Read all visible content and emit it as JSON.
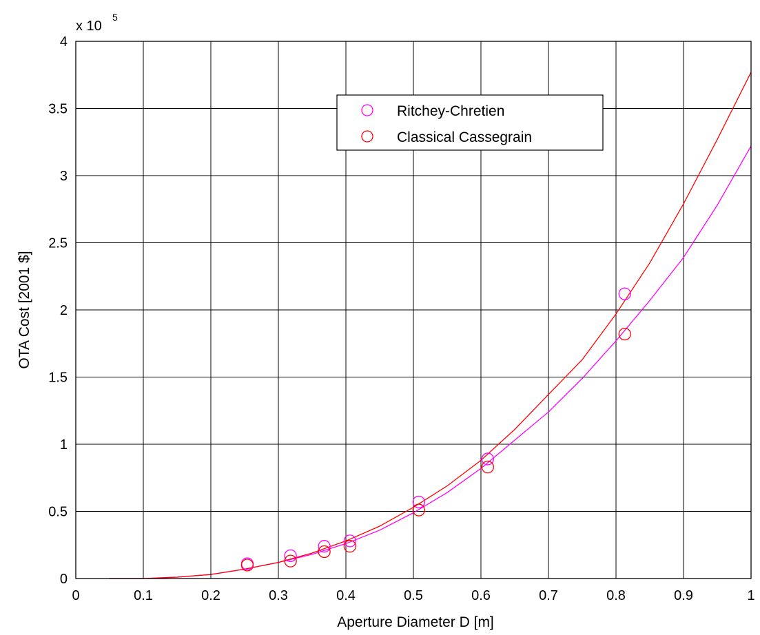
{
  "chart_data": {
    "type": "scatter",
    "title": "",
    "xlabel": "Aperture Diameter D [m]",
    "ylabel": "OTA Cost [2001 $]",
    "y_multiplier_text": "x 10",
    "y_multiplier_exponent": "5",
    "xlim": [
      0,
      1
    ],
    "ylim": [
      0,
      4
    ],
    "x_ticks": [
      0,
      0.1,
      0.2,
      0.3,
      0.4,
      0.5,
      0.6,
      0.7,
      0.8,
      0.9,
      1
    ],
    "x_tick_labels": [
      "0",
      "0.1",
      "0.2",
      "0.3",
      "0.4",
      "0.5",
      "0.6",
      "0.7",
      "0.8",
      "0.9",
      "1"
    ],
    "y_ticks": [
      0,
      0.5,
      1,
      1.5,
      2,
      2.5,
      3,
      3.5,
      4
    ],
    "y_tick_labels": [
      "0",
      "0.5",
      "1",
      "1.5",
      "2",
      "2.5",
      "3",
      "3.5",
      "4"
    ],
    "grid": true,
    "legend_position": "top-center",
    "series": [
      {
        "name": "Ritchey-Chretien",
        "color": "#ff00ff",
        "marker": "circle",
        "points": {
          "x": [
            0.254,
            0.318,
            0.368,
            0.406,
            0.508,
            0.61,
            0.813
          ],
          "y": [
            0.11,
            0.17,
            0.24,
            0.28,
            0.57,
            0.89,
            2.12
          ]
        },
        "fit_curve": {
          "x": [
            0.05,
            0.1,
            0.15,
            0.2,
            0.25,
            0.3,
            0.35,
            0.4,
            0.45,
            0.5,
            0.55,
            0.6,
            0.65,
            0.7,
            0.75,
            0.8,
            0.85,
            0.9,
            0.95,
            1.0
          ],
          "y": [
            0.0,
            0.0,
            0.01,
            0.03,
            0.07,
            0.12,
            0.18,
            0.26,
            0.36,
            0.49,
            0.64,
            0.82,
            1.03,
            1.24,
            1.49,
            1.77,
            2.07,
            2.39,
            2.78,
            3.22
          ]
        }
      },
      {
        "name": "Classical Cassegrain",
        "color": "#ff0000",
        "marker": "circle",
        "points": {
          "x": [
            0.254,
            0.318,
            0.368,
            0.406,
            0.508,
            0.61,
            0.813
          ],
          "y": [
            0.1,
            0.13,
            0.2,
            0.24,
            0.51,
            0.83,
            1.82
          ]
        },
        "fit_curve": {
          "x": [
            0.05,
            0.1,
            0.15,
            0.2,
            0.25,
            0.3,
            0.35,
            0.4,
            0.45,
            0.5,
            0.55,
            0.6,
            0.65,
            0.7,
            0.75,
            0.8,
            0.85,
            0.9,
            0.95,
            1.0
          ],
          "y": [
            0.0,
            0.0,
            0.01,
            0.03,
            0.07,
            0.12,
            0.19,
            0.28,
            0.39,
            0.53,
            0.69,
            0.88,
            1.11,
            1.37,
            1.63,
            1.97,
            2.35,
            2.79,
            3.27,
            3.77
          ]
        }
      }
    ]
  }
}
